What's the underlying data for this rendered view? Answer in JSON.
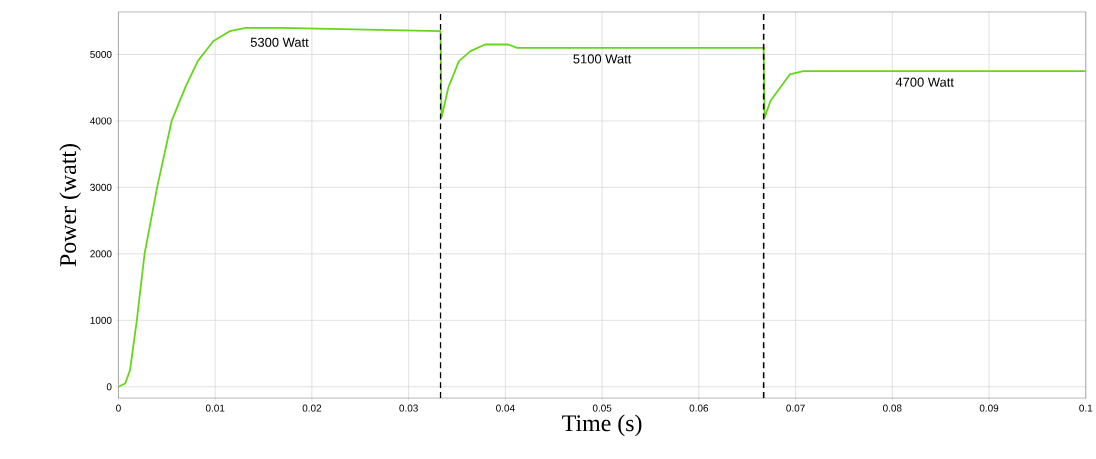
{
  "chart_data": {
    "type": "line",
    "xlabel": "Time (s)",
    "ylabel": "Power (watt)",
    "x": [
      0,
      0.0007,
      0.0012,
      0.0019,
      0.0027,
      0.004,
      0.0055,
      0.0069,
      0.0082,
      0.0098,
      0.0115,
      0.0132,
      0.0168,
      0.0333,
      0.0334,
      0.0341,
      0.0352,
      0.0364,
      0.0379,
      0.0403,
      0.0412,
      0.0667,
      0.0668,
      0.0674,
      0.0684,
      0.0694,
      0.0708,
      0.0764,
      0.1
    ],
    "series": [
      {
        "color": "#66d61a",
        "values": [
          0,
          50,
          250,
          1000,
          2000,
          3000,
          4000,
          4500,
          4900,
          5200,
          5350,
          5400,
          5400,
          5350,
          4050,
          4500,
          4900,
          5050,
          5150,
          5150,
          5100,
          5100,
          4050,
          4300,
          4500,
          4700,
          4750,
          4750,
          4750
        ]
      }
    ],
    "xlim": [
      0,
      0.1
    ],
    "ylim": [
      -170,
      5640
    ],
    "xticks": [
      0,
      0.01,
      0.02,
      0.03,
      0.04,
      0.05,
      0.06,
      0.07,
      0.08,
      0.09,
      0.1
    ],
    "yticks": [
      0,
      1000,
      2000,
      3000,
      4000,
      5000
    ],
    "grid": true,
    "marker": "none",
    "line_style": "solid",
    "ref_lines": [
      {
        "axis": "x",
        "value": 0.0333,
        "color": "#000000",
        "line_style": "dashed"
      },
      {
        "axis": "x",
        "value": 0.0667,
        "color": "#000000",
        "line_style": "dashed"
      }
    ],
    "annotations": [
      "5300 Watt",
      "5100 Watt",
      "4700 Watt"
    ]
  }
}
